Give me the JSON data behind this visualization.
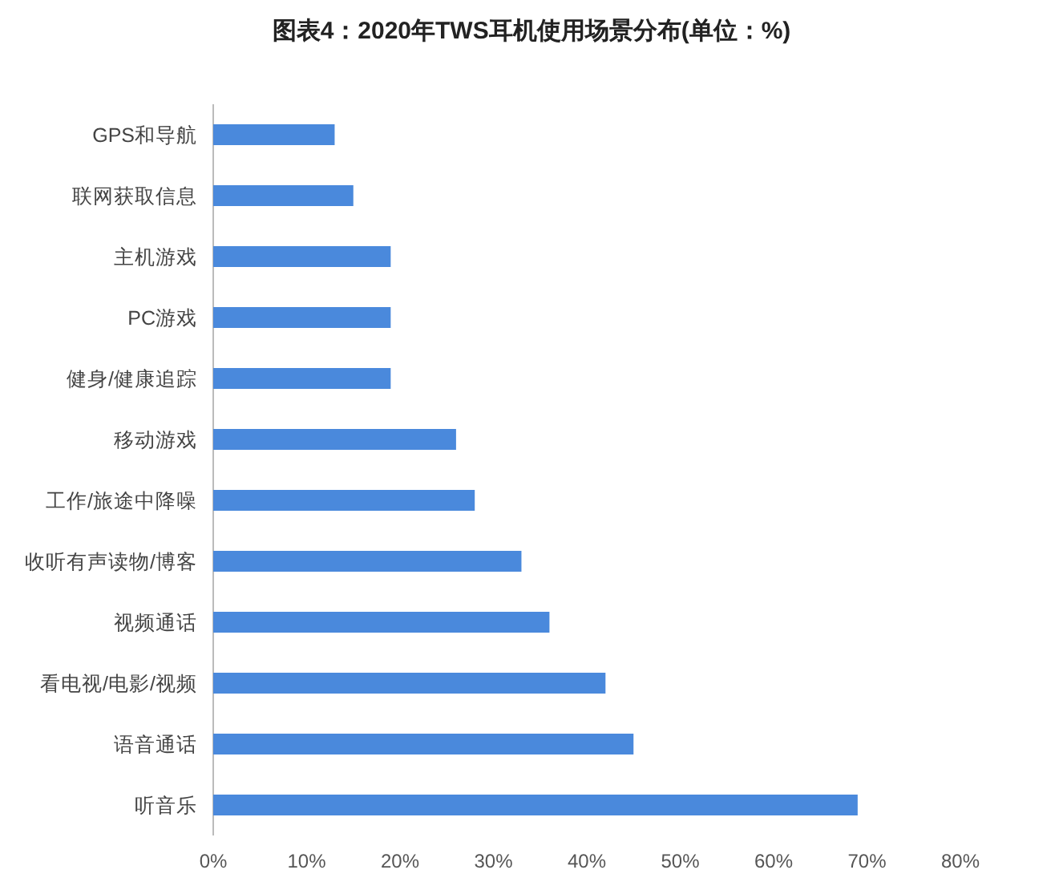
{
  "chart_data": {
    "type": "bar",
    "orientation": "horizontal",
    "title": "图表4：2020年TWS耳机使用场景分布(单位：%)",
    "categories": [
      "GPS和导航",
      "联网获取信息",
      "主机游戏",
      "PC游戏",
      "健身/健康追踪",
      "移动游戏",
      "工作/旅途中降噪",
      "收听有声读物/博客",
      "视频通话",
      "看电视/电影/视频",
      "语音通话",
      "听音乐"
    ],
    "values": [
      13,
      15,
      19,
      19,
      19,
      26,
      28,
      33,
      36,
      42,
      45,
      69
    ],
    "color": "#4a89dc",
    "xlim": [
      0,
      80
    ],
    "xticks": [
      {
        "value": 0,
        "label": "0%"
      },
      {
        "value": 10,
        "label": "10%"
      },
      {
        "value": 20,
        "label": "20%"
      },
      {
        "value": 30,
        "label": "30%"
      },
      {
        "value": 40,
        "label": "40%"
      },
      {
        "value": 50,
        "label": "50%"
      },
      {
        "value": 60,
        "label": "60%"
      },
      {
        "value": 70,
        "label": "70%"
      },
      {
        "value": 80,
        "label": "80%"
      }
    ],
    "grid": false
  }
}
